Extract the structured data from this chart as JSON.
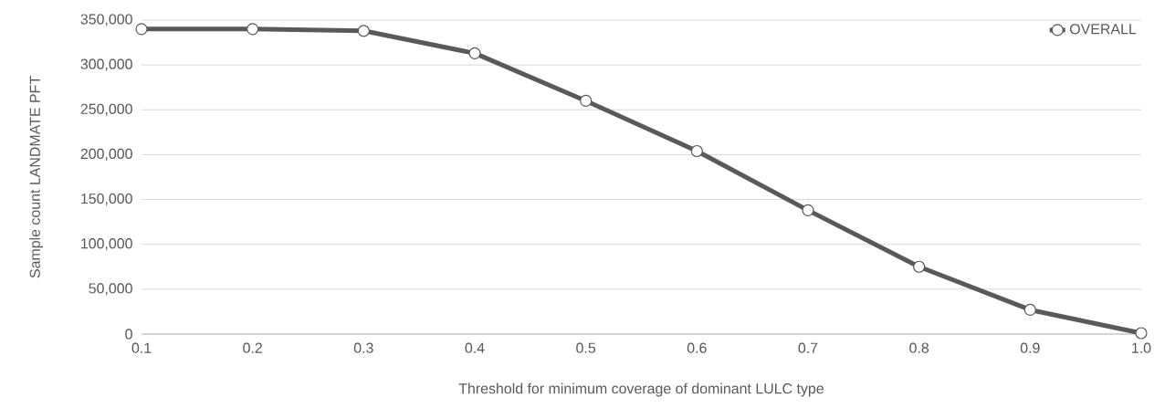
{
  "chart_data": {
    "type": "line",
    "xlabel": "Threshold for minimum coverage of dominant LULC type",
    "ylabel": "Sample count LANDMATE PFT",
    "categories": [
      "0.1",
      "0.2",
      "0.3",
      "0.4",
      "0.5",
      "0.6",
      "0.7",
      "0.8",
      "0.9",
      "1.0"
    ],
    "series": [
      {
        "name": "OVERALL",
        "color": "#595959",
        "values": [
          340000,
          340000,
          338000,
          313000,
          260000,
          204000,
          138000,
          75000,
          27000,
          1000
        ]
      }
    ],
    "ylim": [
      0,
      350000
    ],
    "yticks": [
      {
        "value": 0,
        "label": "0"
      },
      {
        "value": 50000,
        "label": "50,000"
      },
      {
        "value": 100000,
        "label": "100,000"
      },
      {
        "value": 150000,
        "label": "150,000"
      },
      {
        "value": 200000,
        "label": "200,000"
      },
      {
        "value": 250000,
        "label": "250,000"
      },
      {
        "value": 300000,
        "label": "300,000"
      },
      {
        "value": 350000,
        "label": "350,000"
      }
    ],
    "grid": "y",
    "legend": "top right",
    "marker": "circle",
    "line_style": "solid"
  }
}
